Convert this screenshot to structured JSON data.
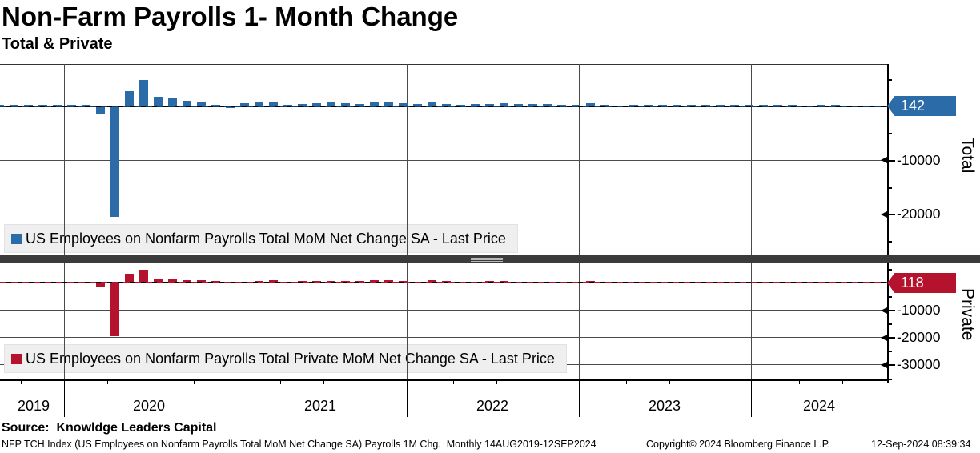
{
  "header": {
    "title": "Non-Farm Payrolls 1- Month Change",
    "subtitle": "Total & Private"
  },
  "chart_data": {
    "type": "bar",
    "grid": true,
    "x_year_labels": [
      "2019",
      "2020",
      "2021",
      "2022",
      "2023",
      "2024"
    ],
    "x_months": [
      "2019-08",
      "2019-09",
      "2019-10",
      "2019-11",
      "2019-12",
      "2020-01",
      "2020-02",
      "2020-03",
      "2020-04",
      "2020-05",
      "2020-06",
      "2020-07",
      "2020-08",
      "2020-09",
      "2020-10",
      "2020-11",
      "2020-12",
      "2021-01",
      "2021-02",
      "2021-03",
      "2021-04",
      "2021-05",
      "2021-06",
      "2021-07",
      "2021-08",
      "2021-09",
      "2021-10",
      "2021-11",
      "2021-12",
      "2022-01",
      "2022-02",
      "2022-03",
      "2022-04",
      "2022-05",
      "2022-06",
      "2022-07",
      "2022-08",
      "2022-09",
      "2022-10",
      "2022-11",
      "2022-12",
      "2023-01",
      "2023-02",
      "2023-03",
      "2023-04",
      "2023-05",
      "2023-06",
      "2023-07",
      "2023-08",
      "2023-09",
      "2023-10",
      "2023-11",
      "2023-12",
      "2024-01",
      "2024-02",
      "2024-03",
      "2024-04",
      "2024-05",
      "2024-06",
      "2024-07",
      "2024-08"
    ],
    "panels": [
      {
        "name": "Total",
        "series_name": "US Employees on Nonfarm Payrolls Total MoM Net Change SA - Last Price",
        "color": "#2B6CA8",
        "last_value": 142,
        "ylim": [
          -27500,
          7800
        ],
        "y_tick_labels": [
          -10000,
          -20000
        ],
        "y_minor_step": 5000,
        "values": [
          168,
          208,
          185,
          261,
          184,
          214,
          289,
          -1373,
          -20493,
          2833,
          4846,
          1726,
          1583,
          919,
          680,
          264,
          -306,
          520,
          710,
          704,
          263,
          447,
          557,
          689,
          517,
          424,
          677,
          647,
          588,
          364,
          904,
          414,
          254,
          364,
          370,
          568,
          352,
          350,
          324,
          290,
          239,
          482,
          287,
          146,
          278,
          303,
          240,
          184,
          210,
          246,
          165,
          182,
          290,
          256,
          236,
          310,
          108,
          216,
          179,
          89,
          142
        ]
      },
      {
        "name": "Private",
        "series_name": "US Employees on Nonfarm Payrolls Total Private MoM Net Change SA - Last Price",
        "color": "#B5122E",
        "last_value": 118,
        "ylim": [
          -35300,
          6600
        ],
        "y_tick_labels": [
          -10000,
          -20000,
          -30000
        ],
        "y_minor_step": 5000,
        "values": [
          122,
          163,
          196,
          243,
          142,
          206,
          242,
          -1505,
          -19558,
          3232,
          4611,
          1459,
          1024,
          892,
          877,
          417,
          -204,
          68,
          652,
          708,
          219,
          446,
          639,
          661,
          439,
          422,
          704,
          681,
          503,
          353,
          739,
          426,
          313,
          347,
          404,
          463,
          275,
          341,
          248,
          227,
          269,
          386,
          248,
          123,
          253,
          255,
          163,
          155,
          146,
          192,
          99,
          136,
          278,
          229,
          177,
          232,
          158,
          193,
          136,
          74,
          118
        ]
      }
    ]
  },
  "colors": {
    "legend_bg": "#EFEFEF",
    "divider": "#3B3B3B"
  },
  "footer": {
    "source": "Source:  Knowldge Leaders Capital",
    "description": "NFP TCH Index (US Employees on Nonfarm Payrolls Total MoM Net Change SA) Payrolls 1M Chg.  Monthly 14AUG2019-12SEP2024",
    "copyright": "Copyright© 2024 Bloomberg Finance L.P.",
    "timestamp": "12-Sep-2024 08:39:34"
  }
}
